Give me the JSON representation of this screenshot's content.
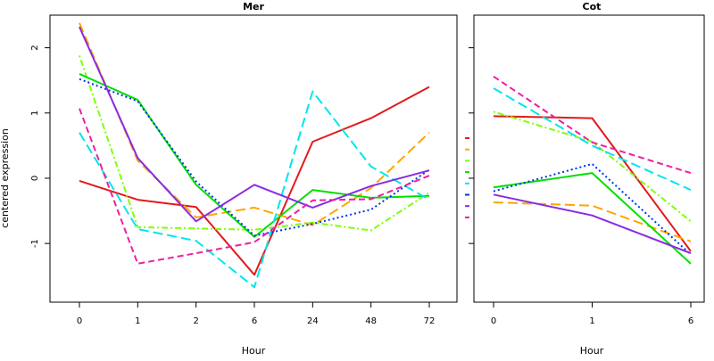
{
  "ylabel": "centered expression",
  "colors": {
    "red": "#e31a1c",
    "orange": "#ffa500",
    "lime": "#7fff00",
    "green": "#00e000",
    "cyan": "#00e5ee",
    "blue": "#0033ee",
    "purple": "#8a2be2",
    "magenta": "#ee1fa0"
  },
  "chart_data": [
    {
      "type": "line",
      "title": "Mer",
      "xlabel": "Hour",
      "categories": [
        "0",
        "1",
        "2",
        "6",
        "24",
        "48",
        "72"
      ],
      "ylim": [
        -1.9,
        2.5
      ],
      "yticks": [
        -1,
        0,
        1,
        2
      ],
      "series": [
        {
          "color": "red",
          "dash": "solid",
          "values": [
            -0.04,
            -0.33,
            -0.44,
            -1.48,
            0.56,
            0.92,
            1.4
          ]
        },
        {
          "color": "orange",
          "dash": "longdash",
          "values": [
            2.38,
            0.27,
            -0.6,
            -0.45,
            -0.72,
            -0.15,
            0.7
          ]
        },
        {
          "color": "lime",
          "dash": "dotdash",
          "values": [
            1.88,
            -0.75,
            -0.77,
            -0.79,
            -0.68,
            -0.8,
            -0.22
          ]
        },
        {
          "color": "green",
          "dash": "solid",
          "values": [
            1.6,
            1.2,
            -0.1,
            -0.9,
            -0.18,
            -0.3,
            -0.27
          ]
        },
        {
          "color": "cyan",
          "dash": "longdash",
          "values": [
            0.7,
            -0.78,
            -0.96,
            -1.67,
            1.33,
            0.18,
            -0.33
          ]
        },
        {
          "color": "blue",
          "dash": "dotted",
          "values": [
            1.52,
            1.18,
            -0.05,
            -0.88,
            -0.7,
            -0.48,
            0.13
          ]
        },
        {
          "color": "purple",
          "dash": "solid",
          "values": [
            2.32,
            0.31,
            -0.66,
            -0.1,
            -0.45,
            -0.12,
            0.12
          ]
        },
        {
          "color": "magenta",
          "dash": "dashed",
          "values": [
            1.07,
            -1.31,
            -1.15,
            -0.98,
            -0.34,
            -0.32,
            0.04
          ]
        }
      ]
    },
    {
      "type": "line",
      "title": "Cot",
      "xlabel": "Hour",
      "categories": [
        "0",
        "1",
        "6"
      ],
      "ylim": [
        -1.9,
        2.5
      ],
      "yticks": [
        -1,
        0,
        1,
        2
      ],
      "series": [
        {
          "color": "red",
          "dash": "solid",
          "values": [
            0.95,
            0.92,
            -1.12
          ]
        },
        {
          "color": "orange",
          "dash": "longdash",
          "values": [
            -0.37,
            -0.42,
            -0.97
          ]
        },
        {
          "color": "lime",
          "dash": "dotdash",
          "values": [
            1.02,
            0.56,
            -0.66
          ]
        },
        {
          "color": "green",
          "dash": "solid",
          "values": [
            -0.14,
            0.08,
            -1.31
          ]
        },
        {
          "color": "cyan",
          "dash": "longdash",
          "values": [
            1.38,
            0.5,
            -0.18
          ]
        },
        {
          "color": "blue",
          "dash": "dotted",
          "values": [
            -0.2,
            0.22,
            -1.17
          ]
        },
        {
          "color": "purple",
          "dash": "solid",
          "values": [
            -0.25,
            -0.57,
            -1.15
          ]
        },
        {
          "color": "magenta",
          "dash": "dashed",
          "values": [
            1.56,
            0.55,
            0.08
          ]
        }
      ]
    }
  ],
  "legend_markers": [
    "red",
    "orange",
    "lime",
    "green",
    "cyan",
    "blue",
    "purple",
    "magenta"
  ]
}
